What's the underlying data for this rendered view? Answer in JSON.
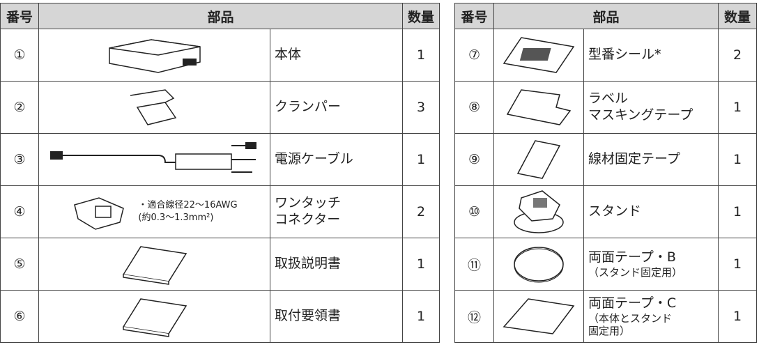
{
  "tables": [
    {
      "headers": [
        "番号",
        "部品",
        "数量"
      ],
      "rows": [
        {
          "number": "①",
          "name": [
            "本体"
          ],
          "quantity": 1
        },
        {
          "number": "②",
          "name": [
            "クランパー"
          ],
          "quantity": 3
        },
        {
          "number": "③",
          "name": [
            "電源ケーブル"
          ],
          "quantity": 1
        },
        {
          "number": "④",
          "name": [
            "ワンタッチ",
            "コネクター"
          ],
          "quantity": 2,
          "note": [
            "・適合線径22～16AWG",
            "(約0.3～1.3mm²)"
          ]
        },
        {
          "number": "⑤",
          "name": [
            "取扱説明書"
          ],
          "quantity": 1
        },
        {
          "number": "⑥",
          "name": [
            "取付要領書"
          ],
          "quantity": 1
        }
      ]
    },
    {
      "headers": [
        "番号",
        "部品",
        "数量"
      ],
      "rows": [
        {
          "number": "⑦",
          "name": [
            "型番シール*"
          ],
          "quantity": 2
        },
        {
          "number": "⑧",
          "name": [
            "ラベル",
            "マスキングテープ"
          ],
          "quantity": 1
        },
        {
          "number": "⑨",
          "name": [
            "線材固定テープ"
          ],
          "quantity": 1
        },
        {
          "number": "⑩",
          "name": [
            "スタンド"
          ],
          "quantity": 1
        },
        {
          "number": "⑪",
          "name": [
            "両面テープ・B"
          ],
          "sub": [
            "（スタンド固定用）"
          ],
          "quantity": 1
        },
        {
          "number": "⑫",
          "name": [
            "両面テープ・C"
          ],
          "sub": [
            "（本体とスタンド",
            "固定用）"
          ],
          "quantity": 1
        }
      ]
    }
  ]
}
